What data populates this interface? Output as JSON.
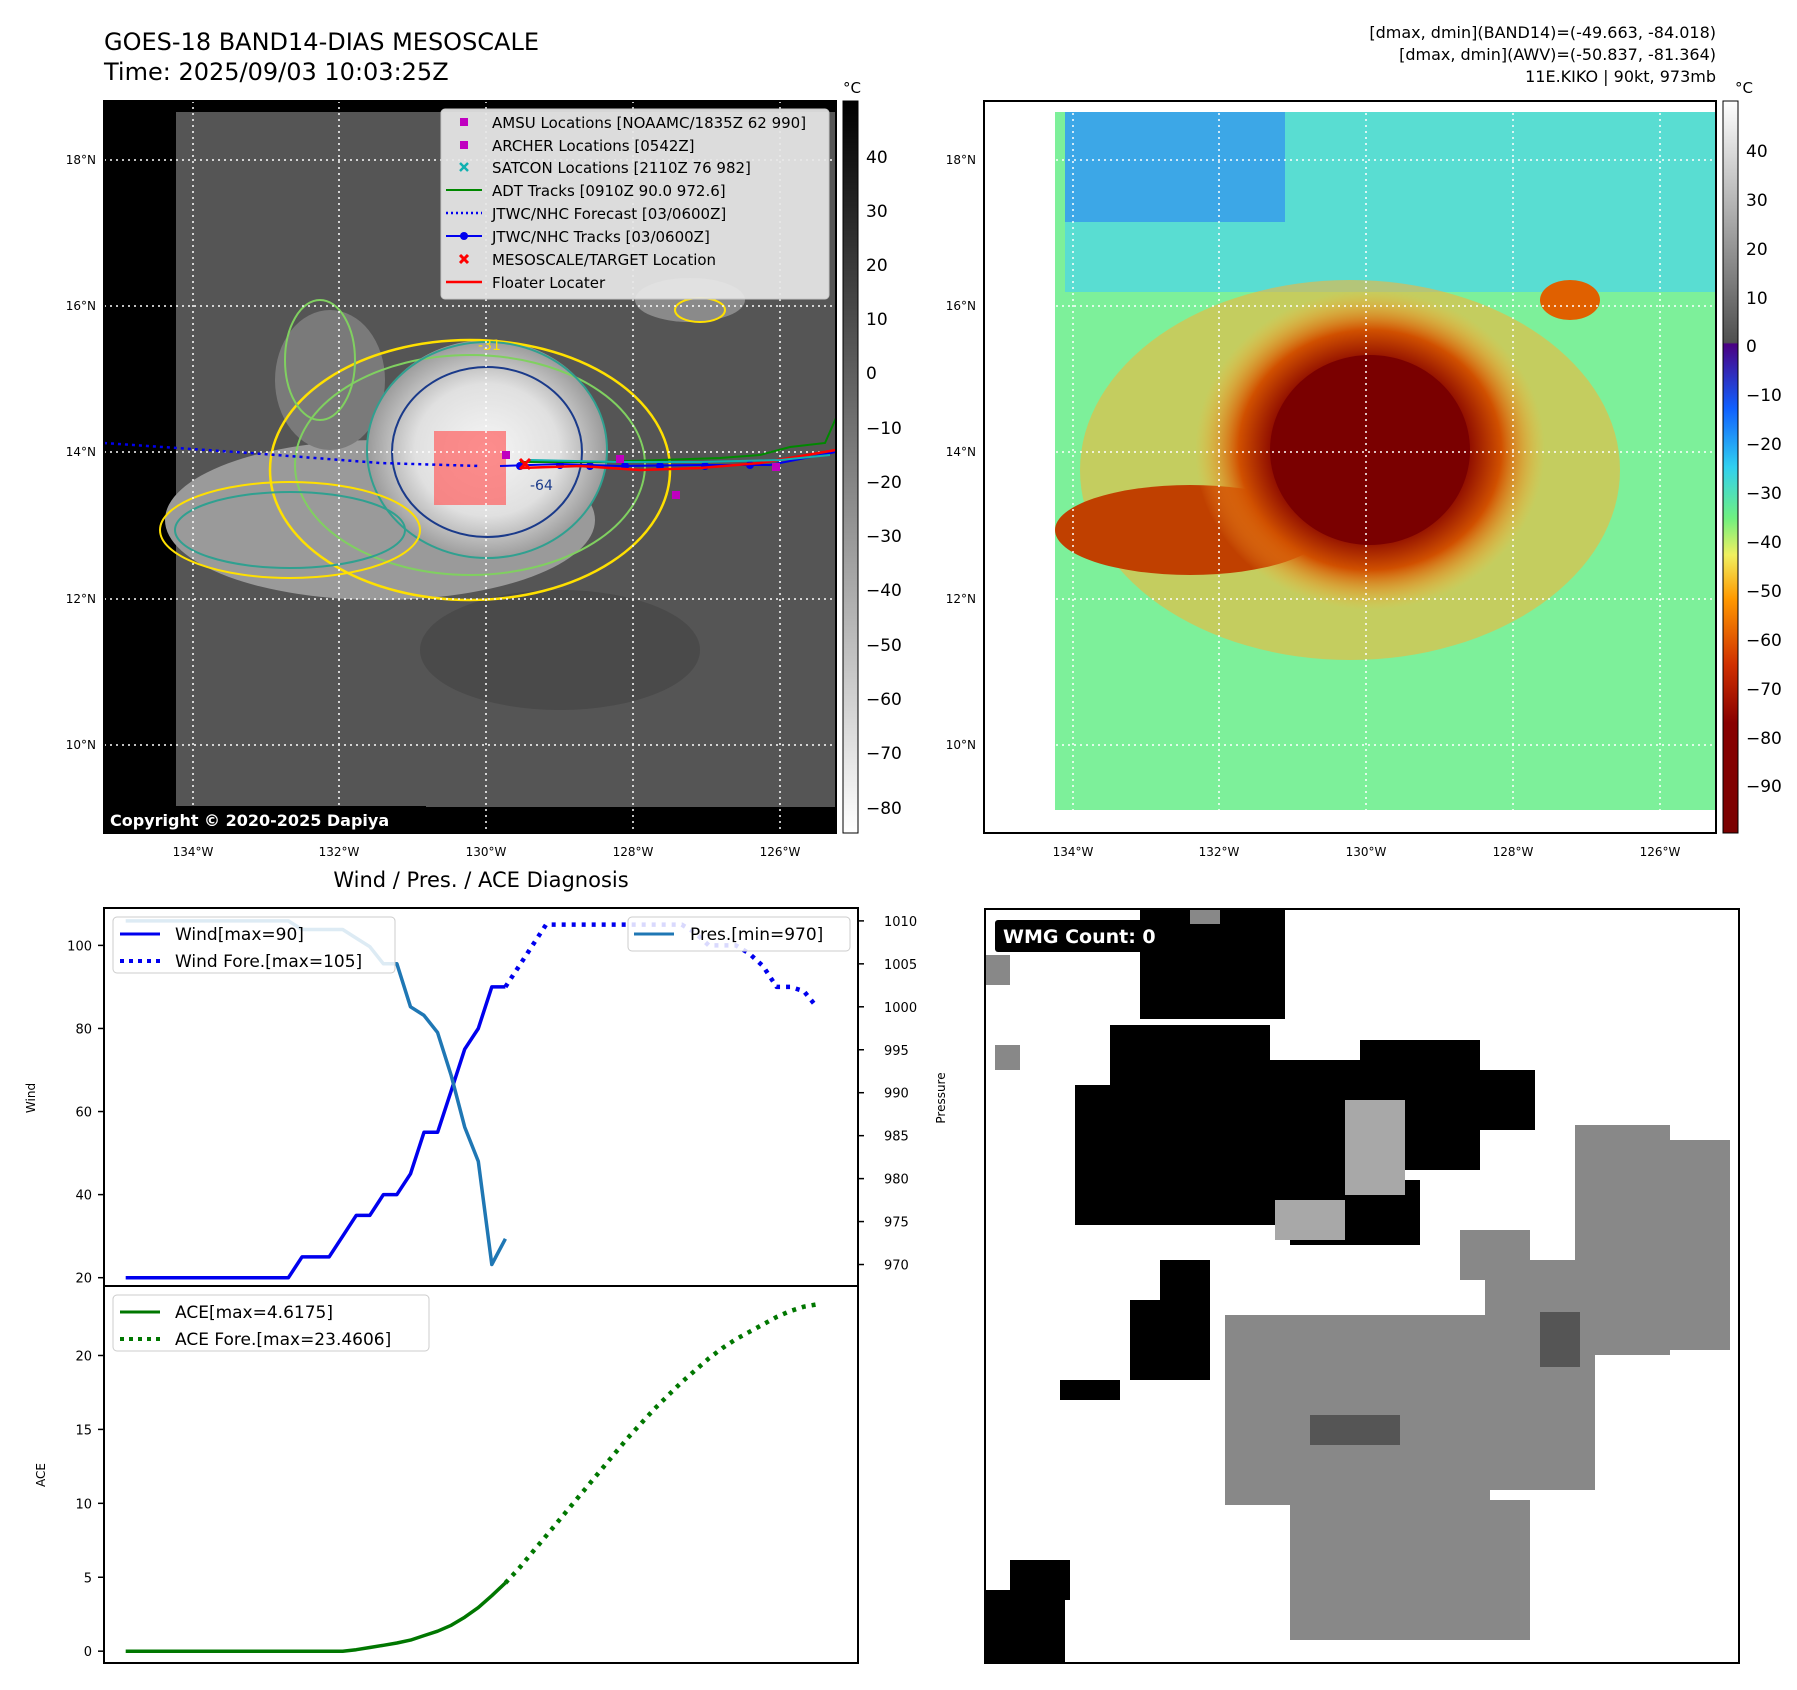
{
  "header": {
    "title": "GOES-18 BAND14-DIAS MESOSCALE",
    "time": "Time: 2025/09/03 10:03:25Z",
    "stats_band14": "[dmax, dmin](BAND14)=(-49.663, -84.018)",
    "stats_awv": "[dmax, dmin](AWV)=(-50.837, -81.364)",
    "storm": "11E.KIKO | 90kt, 973mb"
  },
  "map": {
    "lon_labels": [
      "134°W",
      "132°W",
      "130°W",
      "128°W",
      "126°W"
    ],
    "lat_labels": [
      "18°N",
      "16°N",
      "14°N",
      "12°N",
      "10°N"
    ],
    "copyright": "Copyright © 2020-2025 Dapiya",
    "contour_label_1": "-31",
    "contour_label_2": "-64"
  },
  "legend": {
    "items": [
      "AMSU Locations [NOAAMC/1835Z 62 990]",
      "ARCHER Locations [0542Z]",
      "SATCON Locations [2110Z 76 982]",
      "ADT Tracks [0910Z 90.0 972.6]",
      "JTWC/NHC Forecast [03/0600Z]",
      "JTWC/NHC Tracks [03/0600Z]",
      "MESOSCALE/TARGET Location",
      "Floater Locater"
    ]
  },
  "colorbar_gray": {
    "unit": "°C",
    "ticks": [
      "40",
      "30",
      "20",
      "10",
      "0",
      "−10",
      "−20",
      "−30",
      "−40",
      "−50",
      "−60",
      "−70",
      "−80"
    ]
  },
  "colorbar_color": {
    "unit": "°C",
    "ticks": [
      "40",
      "30",
      "20",
      "10",
      "0",
      "−10",
      "−20",
      "−30",
      "−40",
      "−50",
      "−60",
      "−70",
      "−80",
      "−90"
    ]
  },
  "wmg": {
    "label": "WMG Count: 0"
  },
  "colors": {
    "wind": "#0000ee",
    "pressure": "#1f77b4",
    "ace": "#007700",
    "floater": "#ff0000"
  },
  "chart_data": [
    {
      "type": "line",
      "title": "Wind / Pres. / ACE Diagnosis",
      "ylabel": "Wind",
      "y2label": "Pressure",
      "ylim": [
        18,
        109
      ],
      "y2lim": [
        967.5,
        1011.5
      ],
      "yticks": [
        20,
        40,
        60,
        80,
        100
      ],
      "y2ticks": [
        970,
        975,
        980,
        985,
        990,
        995,
        1000,
        1005,
        1010
      ],
      "series": [
        {
          "name": "Wind[max=90]",
          "style": "solid",
          "x": [
            0,
            1,
            2,
            3,
            4,
            5,
            6,
            7,
            8,
            9,
            10,
            11,
            12,
            13,
            14,
            15,
            16,
            17,
            18,
            19,
            20,
            21,
            22,
            23,
            24,
            25,
            26,
            27,
            28
          ],
          "values": [
            20,
            20,
            20,
            20,
            20,
            20,
            20,
            20,
            20,
            20,
            20,
            20,
            20,
            25,
            25,
            25,
            30,
            35,
            35,
            40,
            40,
            45,
            55,
            55,
            65,
            75,
            80,
            90,
            90
          ]
        },
        {
          "name": "Wind Fore.[max=105]",
          "style": "dotted",
          "x": [
            28,
            29,
            30,
            31,
            32,
            33,
            34,
            35,
            36,
            37,
            38,
            39,
            40,
            41,
            42,
            43,
            44,
            45,
            46,
            47,
            48,
            49,
            50,
            51
          ],
          "values": [
            90,
            95,
            100,
            105,
            105,
            105,
            105,
            105,
            105,
            105,
            105,
            105,
            105,
            105,
            103,
            100,
            100,
            100,
            98,
            95,
            90,
            90,
            89,
            85
          ]
        },
        {
          "name": "Pres.[min=970]",
          "style": "solid",
          "axis": "y2",
          "x": [
            0,
            1,
            2,
            3,
            4,
            5,
            6,
            7,
            8,
            9,
            10,
            11,
            12,
            13,
            14,
            15,
            16,
            17,
            18,
            19,
            20,
            21,
            22,
            23,
            24,
            25,
            26,
            27,
            28
          ],
          "values": [
            1010,
            1010,
            1010,
            1010,
            1010,
            1010,
            1010,
            1010,
            1010,
            1010,
            1010,
            1010,
            1010,
            1009,
            1009,
            1009,
            1009,
            1008,
            1007,
            1005,
            1005,
            1000,
            999,
            997,
            992,
            986,
            982,
            970,
            973
          ]
        }
      ]
    },
    {
      "type": "line",
      "ylabel": "ACE",
      "ylim": [
        -0.8,
        24.7
      ],
      "yticks": [
        0,
        5,
        10,
        15,
        20
      ],
      "series": [
        {
          "name": "ACE[max=4.6175]",
          "style": "solid",
          "x": [
            0,
            2,
            4,
            6,
            8,
            10,
            12,
            14,
            16,
            17,
            18,
            19,
            20,
            21,
            22,
            23,
            24,
            25,
            26,
            27,
            28
          ],
          "values": [
            0,
            0,
            0,
            0,
            0,
            0,
            0,
            0,
            0,
            0.1,
            0.25,
            0.4,
            0.55,
            0.75,
            1.05,
            1.35,
            1.75,
            2.3,
            2.95,
            3.75,
            4.6175
          ]
        },
        {
          "name": "ACE Fore.[max=23.4606]",
          "style": "dotted",
          "x": [
            28,
            29,
            30,
            31,
            32,
            33,
            34,
            35,
            36,
            37,
            38,
            39,
            40,
            41,
            42,
            43,
            44,
            45,
            46,
            47,
            48,
            49,
            50,
            51
          ],
          "values": [
            4.6175,
            5.6,
            6.7,
            7.8,
            8.9,
            10.0,
            11.1,
            12.2,
            13.3,
            14.4,
            15.4,
            16.4,
            17.3,
            18.2,
            19.0,
            19.8,
            20.5,
            21.1,
            21.6,
            22.1,
            22.6,
            23.0,
            23.3,
            23.4606
          ]
        }
      ]
    }
  ]
}
